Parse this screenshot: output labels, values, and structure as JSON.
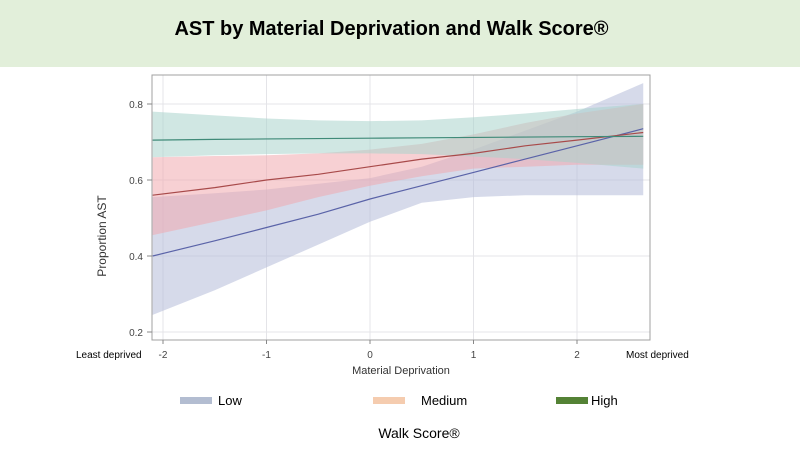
{
  "title": "AST by Material Deprivation and Walk Score®",
  "side_labels": {
    "left": "Least deprived",
    "right": "Most deprived"
  },
  "legend": {
    "title": "Walk Score®",
    "items": [
      {
        "label": "Low",
        "color": "#b3bdd1"
      },
      {
        "label": "Medium",
        "color": "#f5ccaf"
      },
      {
        "label": "High",
        "color": "#548235"
      }
    ]
  },
  "chart_data": {
    "type": "line",
    "title": "AST by Material Deprivation and Walk Score®",
    "xlabel": "Material Deprivation",
    "ylabel": "Proportion  AST",
    "xlim": [
      -2.2,
      2.75
    ],
    "ylim": [
      0.18,
      0.87
    ],
    "x_ticks": [
      -2,
      -1,
      0,
      1,
      2
    ],
    "y_ticks": [
      0.2,
      0.4,
      0.6,
      0.8
    ],
    "x_tick_labels": [
      "-2",
      "-1",
      "0",
      "1",
      "2"
    ],
    "y_tick_labels": [
      "0.2",
      "0.4",
      "0.6",
      "0.8"
    ],
    "grid": true,
    "legend_position": "bottom",
    "x": [
      -2.1,
      -1.5,
      -1,
      -0.5,
      0,
      0.5,
      1,
      1.5,
      2,
      2.64
    ],
    "series": [
      {
        "name": "Low",
        "line_color": "#5a63a8",
        "band_color": "#b4bcd8",
        "values": [
          0.4,
          0.44,
          0.475,
          0.51,
          0.55,
          0.585,
          0.62,
          0.655,
          0.69,
          0.735
        ],
        "lower": [
          0.245,
          0.31,
          0.37,
          0.43,
          0.49,
          0.54,
          0.555,
          0.56,
          0.56,
          0.56
        ],
        "upper": [
          0.555,
          0.565,
          0.575,
          0.59,
          0.605,
          0.635,
          0.68,
          0.73,
          0.78,
          0.855
        ]
      },
      {
        "name": "Medium",
        "line_color": "#a84a4a",
        "band_color": "#f1a9ae",
        "values": [
          0.56,
          0.58,
          0.6,
          0.615,
          0.635,
          0.655,
          0.67,
          0.69,
          0.705,
          0.725
        ],
        "lower": [
          0.455,
          0.49,
          0.52,
          0.555,
          0.585,
          0.61,
          0.63,
          0.635,
          0.64,
          0.64
        ],
        "upper": [
          0.66,
          0.663,
          0.665,
          0.67,
          0.68,
          0.695,
          0.72,
          0.75,
          0.775,
          0.8
        ]
      },
      {
        "name": "High",
        "line_color": "#3f8a78",
        "band_color": "#a9d3cc",
        "values": [
          0.705,
          0.707,
          0.708,
          0.709,
          0.71,
          0.711,
          0.712,
          0.713,
          0.714,
          0.715
        ],
        "lower": [
          0.66,
          0.665,
          0.668,
          0.67,
          0.67,
          0.668,
          0.662,
          0.655,
          0.645,
          0.63
        ],
        "upper": [
          0.78,
          0.77,
          0.762,
          0.757,
          0.755,
          0.757,
          0.765,
          0.775,
          0.787,
          0.8
        ]
      }
    ]
  }
}
